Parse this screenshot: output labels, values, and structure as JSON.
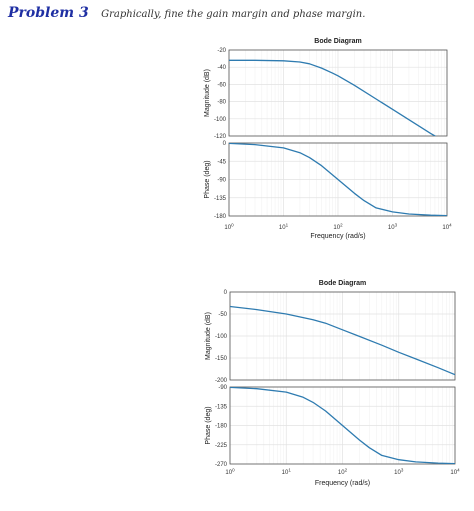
{
  "problem": {
    "label": "Problem 3",
    "text": "Graphically, fine the gain margin and phase margin."
  },
  "colors": {
    "curve": "#2e7bb0",
    "grid": "#e2e2e2",
    "grid_minor": "#efefef",
    "axis": "#555555"
  },
  "chart_data": [
    {
      "type": "line",
      "title": "Bode Diagram",
      "xlabel": "Frequency  (rad/s)",
      "xscale": "log",
      "xlim": [
        1,
        10000
      ],
      "xtick_labels": [
        "10",
        "10",
        "10",
        "10",
        "10"
      ],
      "xtick_exponents": [
        "0",
        "1",
        "2",
        "3",
        "4"
      ],
      "grid": true,
      "subplots": [
        {
          "ylabel": "Magnitude (dB)",
          "ylim": [
            -120,
            -20
          ],
          "yticks": [
            -20,
            -40,
            -60,
            -80,
            -100,
            -120
          ],
          "ytick_labels": [
            "-20",
            "-40",
            "-60",
            "-80",
            "-100",
            "-120"
          ],
          "x": [
            1,
            3,
            10,
            20,
            30,
            50,
            80,
            100,
            200,
            500,
            1000,
            2000,
            5000,
            10000
          ],
          "y": [
            -32,
            -32,
            -32.5,
            -34,
            -36,
            -41,
            -47,
            -50,
            -61,
            -77,
            -89,
            -101,
            -117,
            -128
          ]
        },
        {
          "ylabel": "Phase (deg)",
          "ylim": [
            -180,
            0
          ],
          "yticks": [
            0,
            -45,
            -90,
            -135,
            -180
          ],
          "ytick_labels": [
            "0",
            "-45",
            "-90",
            "-135",
            "-180"
          ],
          "x": [
            1,
            3,
            10,
            20,
            30,
            50,
            100,
            200,
            300,
            500,
            1000,
            2000,
            5000,
            10000
          ],
          "y": [
            -1,
            -4,
            -12,
            -24,
            -36,
            -56,
            -90,
            -124,
            -142,
            -160,
            -170,
            -175,
            -178,
            -179
          ]
        }
      ]
    },
    {
      "type": "line",
      "title": "Bode Diagram",
      "xlabel": "Frequency  (rad/s)",
      "xscale": "log",
      "xlim": [
        1,
        10000
      ],
      "xtick_labels": [
        "10",
        "10",
        "10",
        "10",
        "10"
      ],
      "xtick_exponents": [
        "0",
        "1",
        "2",
        "3",
        "4"
      ],
      "grid": true,
      "subplots": [
        {
          "ylabel": "Magnitude (dB)",
          "ylim": [
            -200,
            0
          ],
          "yticks": [
            0,
            -50,
            -100,
            -150,
            -200
          ],
          "ytick_labels": [
            "0",
            "-50",
            "-100",
            "-150",
            "-200"
          ],
          "x": [
            1,
            3,
            10,
            30,
            50,
            100,
            200,
            500,
            1000,
            2000,
            5000,
            10000
          ],
          "y": [
            -33,
            -40,
            -50,
            -63,
            -71,
            -86,
            -101,
            -121,
            -137,
            -152,
            -172,
            -188
          ]
        },
        {
          "ylabel": "Phase (deg)",
          "ylim": [
            -270,
            -90
          ],
          "yticks": [
            -90,
            -135,
            -180,
            -225,
            -270
          ],
          "ytick_labels": [
            "-90",
            "-135",
            "-180",
            "-225",
            "-270"
          ],
          "x": [
            1,
            3,
            10,
            20,
            30,
            50,
            100,
            200,
            300,
            500,
            1000,
            2000,
            5000,
            10000
          ],
          "y": [
            -91,
            -94,
            -102,
            -114,
            -126,
            -146,
            -180,
            -214,
            -232,
            -250,
            -260,
            -265,
            -268,
            -269
          ]
        }
      ]
    }
  ]
}
